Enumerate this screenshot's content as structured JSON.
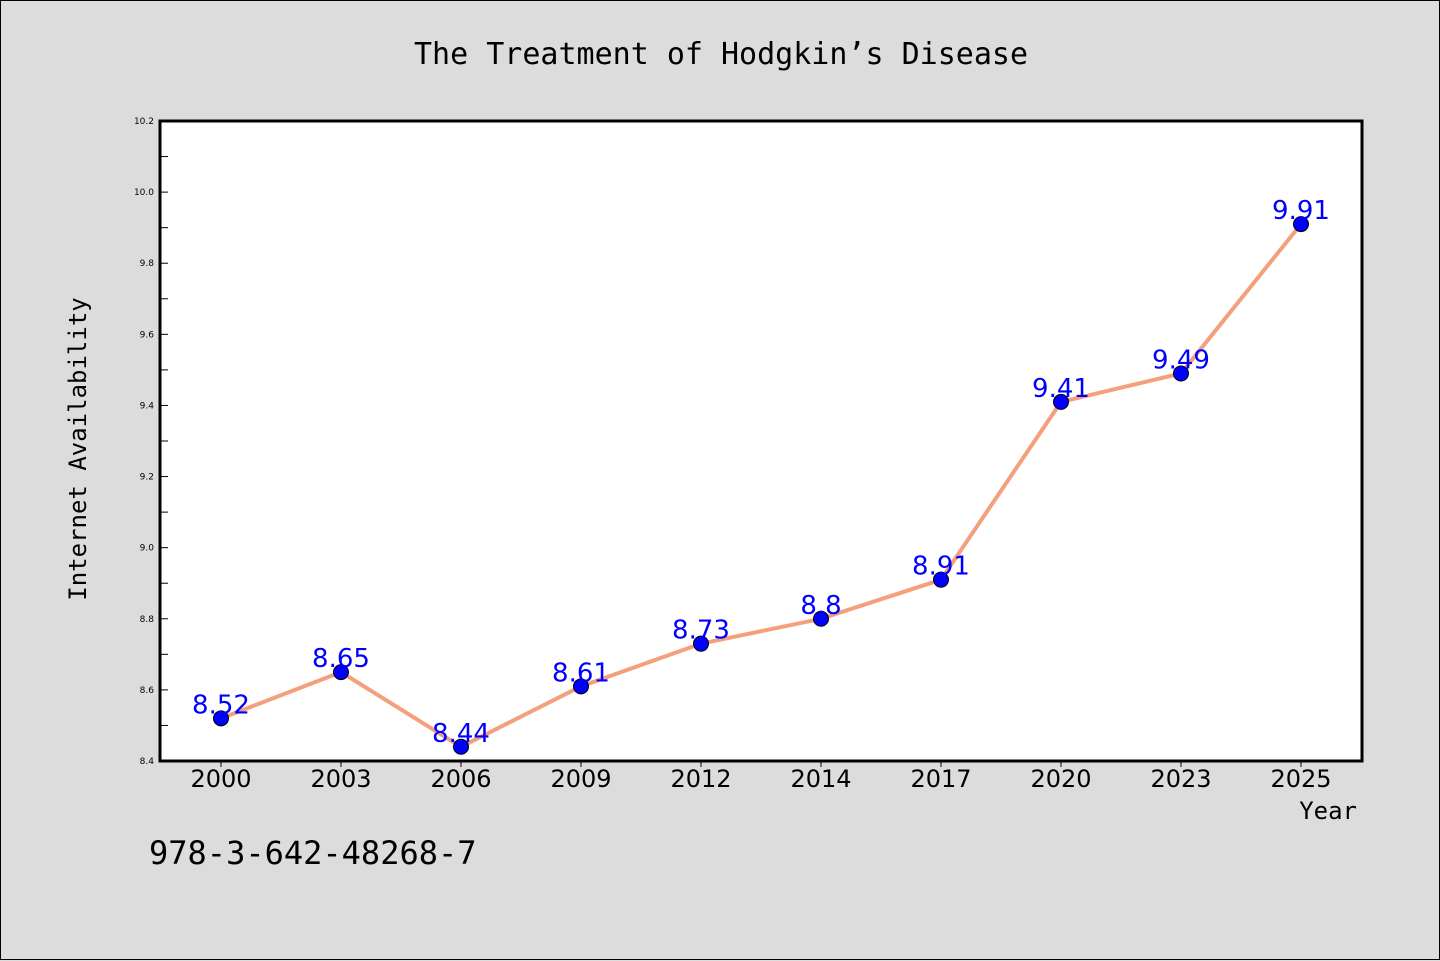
{
  "chart_data": {
    "type": "line",
    "title": "The Treatment of Hodgkin’s Disease",
    "xlabel": "Year",
    "ylabel": "Internet Availability",
    "categories": [
      "2000",
      "2003",
      "2006",
      "2009",
      "2012",
      "2014",
      "2017",
      "2020",
      "2023",
      "2025"
    ],
    "series": [
      {
        "values": [
          8.52,
          8.65,
          8.44,
          8.61,
          8.73,
          8.8,
          8.91,
          9.41,
          9.49,
          9.91
        ],
        "labels": [
          "8.52",
          "8.65",
          "8.44",
          "8.61",
          "8.73",
          "8.8",
          "8.91",
          "9.41",
          "9.49",
          "9.91"
        ],
        "line_color": "#f4a07c",
        "marker_color": "#0000ff",
        "label_color": "#0000ff"
      }
    ],
    "ylim": [
      8.4,
      10.2
    ],
    "yticks": [
      "8.4",
      "8.6",
      "8.8",
      "9.0",
      "9.2",
      "9.4",
      "9.6",
      "9.8",
      "10.0",
      "10.2"
    ],
    "grid": false,
    "legend": "none"
  },
  "annotation": "978-3-642-48268-7",
  "colors": {
    "background": "#dcdcdc",
    "plot_background": "#ffffff"
  }
}
